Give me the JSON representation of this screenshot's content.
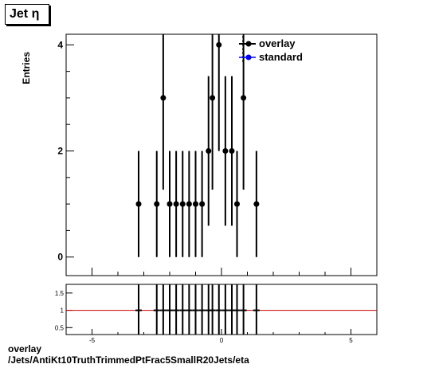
{
  "header": {
    "title": "Jet  η"
  },
  "caption": {
    "line1": "overlay",
    "line2": "/Jets/AntiKt10TruthTrimmedPtFrac5SmallR20Jets/eta"
  },
  "colors": {
    "overlay": "#000000",
    "standard": "#0000ff",
    "ratio_line": "#cc0000"
  },
  "chart_data": [
    {
      "type": "scatter",
      "ylabel": "Entries",
      "xlim": [
        -6,
        6
      ],
      "ylim": [
        -0.35,
        4.2
      ],
      "x_ticks": [
        -5,
        0,
        5
      ],
      "y_ticks": [
        0,
        2,
        4
      ],
      "legend_position": "top-right",
      "series": [
        {
          "name": "overlay",
          "x": [
            -3.2,
            -2.5,
            -2.25,
            -2.0,
            -1.75,
            -1.5,
            -1.25,
            -1.0,
            -0.75,
            -0.5,
            -0.35,
            -0.1,
            0.15,
            0.4,
            0.6,
            0.85,
            1.35
          ],
          "y": [
            1,
            1,
            3,
            1,
            1,
            1,
            1,
            1,
            1,
            2,
            3,
            4,
            2,
            2,
            1,
            3,
            1
          ],
          "yerr": [
            1,
            1,
            1.73,
            1,
            1,
            1,
            1,
            1,
            1,
            1.41,
            1.73,
            2,
            1.41,
            1.41,
            1,
            1.73,
            1
          ]
        },
        {
          "name": "standard",
          "x": [],
          "y": []
        }
      ]
    },
    {
      "type": "scatter",
      "xlim": [
        -6,
        6
      ],
      "ylim": [
        0.3,
        1.75
      ],
      "x_ticks": [
        -5,
        0,
        5
      ],
      "y_ticks": [
        0.5,
        1,
        1.5
      ],
      "reference_line": 1,
      "x": [
        -3.2,
        -2.5,
        -2.25,
        -2.0,
        -1.75,
        -1.5,
        -1.25,
        -1.0,
        -0.75,
        -0.5,
        -0.35,
        -0.1,
        0.15,
        0.4,
        0.6,
        0.85,
        1.35
      ],
      "y": [
        1,
        1,
        1,
        1,
        1,
        1,
        1,
        1,
        1,
        1,
        1,
        1,
        1,
        1,
        1,
        1,
        1
      ]
    }
  ]
}
